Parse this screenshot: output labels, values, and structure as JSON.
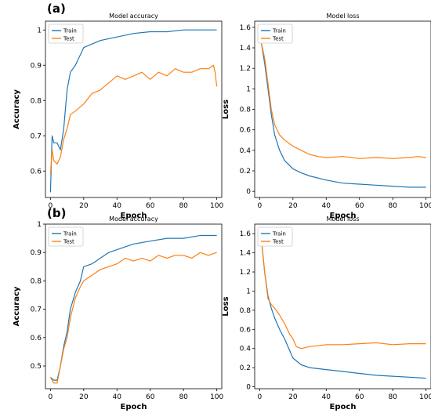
{
  "panel_labels": [
    "(a)",
    "(b)"
  ],
  "colors": {
    "train": "#1f77b4",
    "test": "#ff7f0e"
  },
  "chart_data": [
    {
      "panel": "(a)",
      "type": "line",
      "title": "Model accuracy",
      "xlabel": "Epoch",
      "ylabel": "Accuracy",
      "xlim": [
        -3,
        103
      ],
      "ylim": [
        0.525,
        1.025
      ],
      "xticks": [
        0,
        20,
        40,
        60,
        80,
        100
      ],
      "yticks": [
        0.6,
        0.7,
        0.8,
        0.9,
        1.0
      ],
      "legend": "top-left",
      "series": [
        {
          "name": "Train",
          "x": [
            0,
            1,
            2,
            4,
            6,
            8,
            10,
            12,
            15,
            18,
            20,
            25,
            30,
            40,
            50,
            60,
            70,
            80,
            90,
            100
          ],
          "y": [
            0.54,
            0.7,
            0.68,
            0.68,
            0.66,
            0.72,
            0.83,
            0.88,
            0.9,
            0.93,
            0.95,
            0.96,
            0.97,
            0.98,
            0.99,
            0.995,
            0.995,
            1.0,
            1.0,
            1.0
          ]
        },
        {
          "name": "Test",
          "x": [
            0,
            1,
            2,
            4,
            6,
            8,
            10,
            12,
            15,
            20,
            25,
            30,
            35,
            40,
            45,
            50,
            55,
            60,
            65,
            70,
            75,
            80,
            85,
            90,
            95,
            98,
            99,
            100
          ],
          "y": [
            0.59,
            0.66,
            0.63,
            0.62,
            0.64,
            0.69,
            0.72,
            0.76,
            0.77,
            0.79,
            0.82,
            0.83,
            0.85,
            0.87,
            0.86,
            0.87,
            0.88,
            0.86,
            0.88,
            0.87,
            0.89,
            0.88,
            0.88,
            0.89,
            0.89,
            0.9,
            0.88,
            0.84
          ]
        }
      ]
    },
    {
      "panel": "(a)",
      "type": "line",
      "title": "Model loss",
      "xlabel": "Epoch",
      "ylabel": "Loss",
      "xlim": [
        -3,
        103
      ],
      "ylim": [
        -0.06,
        1.66
      ],
      "xticks": [
        0,
        20,
        40,
        60,
        80,
        100
      ],
      "yticks": [
        0.0,
        0.2,
        0.4,
        0.6,
        0.8,
        1.0,
        1.2,
        1.4,
        1.6
      ],
      "legend": "top-left",
      "series": [
        {
          "name": "Train",
          "x": [
            1,
            3,
            5,
            7,
            9,
            12,
            15,
            20,
            25,
            30,
            40,
            50,
            60,
            70,
            80,
            90,
            100
          ],
          "y": [
            1.45,
            1.25,
            1.0,
            0.75,
            0.55,
            0.4,
            0.3,
            0.22,
            0.18,
            0.15,
            0.11,
            0.08,
            0.07,
            0.06,
            0.05,
            0.04,
            0.04
          ]
        },
        {
          "name": "Test",
          "x": [
            1,
            3,
            5,
            7,
            9,
            12,
            15,
            20,
            25,
            30,
            35,
            40,
            50,
            60,
            70,
            80,
            90,
            95,
            100
          ],
          "y": [
            1.45,
            1.3,
            1.05,
            0.8,
            0.65,
            0.55,
            0.5,
            0.44,
            0.4,
            0.36,
            0.34,
            0.33,
            0.34,
            0.32,
            0.33,
            0.32,
            0.33,
            0.34,
            0.33
          ]
        }
      ]
    },
    {
      "panel": "(b)",
      "type": "line",
      "title": "Model accuracy",
      "xlabel": "Epoch",
      "ylabel": "Accuracy",
      "xlim": [
        -3,
        103
      ],
      "ylim": [
        0.42,
        1.0
      ],
      "xticks": [
        0,
        20,
        40,
        60,
        80,
        100
      ],
      "yticks": [
        0.5,
        0.6,
        0.7,
        0.8,
        0.9,
        1.0
      ],
      "legend": "top-left",
      "series": [
        {
          "name": "Train",
          "x": [
            0,
            2,
            4,
            6,
            8,
            10,
            12,
            15,
            18,
            20,
            25,
            30,
            35,
            40,
            50,
            60,
            70,
            80,
            90,
            95,
            100
          ],
          "y": [
            0.46,
            0.45,
            0.45,
            0.5,
            0.57,
            0.62,
            0.7,
            0.76,
            0.8,
            0.85,
            0.86,
            0.88,
            0.9,
            0.91,
            0.93,
            0.94,
            0.95,
            0.95,
            0.96,
            0.96,
            0.96
          ]
        },
        {
          "name": "Test",
          "x": [
            0,
            2,
            4,
            6,
            8,
            10,
            12,
            15,
            18,
            20,
            25,
            30,
            35,
            40,
            45,
            50,
            55,
            60,
            65,
            70,
            75,
            80,
            85,
            90,
            95,
            100
          ],
          "y": [
            0.46,
            0.44,
            0.44,
            0.5,
            0.56,
            0.6,
            0.67,
            0.74,
            0.78,
            0.8,
            0.82,
            0.84,
            0.85,
            0.86,
            0.88,
            0.87,
            0.88,
            0.87,
            0.89,
            0.88,
            0.89,
            0.89,
            0.88,
            0.9,
            0.89,
            0.9
          ]
        }
      ]
    },
    {
      "panel": "(b)",
      "type": "line",
      "title": "Model loss",
      "xlabel": "Epoch",
      "ylabel": "Loss",
      "xlim": [
        -3,
        103
      ],
      "ylim": [
        -0.02,
        1.7
      ],
      "xticks": [
        0,
        20,
        40,
        60,
        80,
        100
      ],
      "yticks": [
        0.0,
        0.2,
        0.4,
        0.6,
        0.8,
        1.0,
        1.2,
        1.4,
        1.6
      ],
      "legend": "top-left",
      "series": [
        {
          "name": "Train",
          "x": [
            1,
            3,
            5,
            7,
            9,
            12,
            15,
            18,
            20,
            25,
            30,
            40,
            50,
            60,
            70,
            80,
            90,
            100
          ],
          "y": [
            1.55,
            1.2,
            0.95,
            0.82,
            0.72,
            0.6,
            0.5,
            0.38,
            0.3,
            0.23,
            0.2,
            0.18,
            0.16,
            0.14,
            0.12,
            0.11,
            0.1,
            0.09
          ]
        },
        {
          "name": "Test",
          "x": [
            1,
            3,
            5,
            7,
            9,
            12,
            15,
            18,
            20,
            22,
            25,
            30,
            40,
            50,
            60,
            70,
            80,
            90,
            100
          ],
          "y": [
            1.55,
            1.2,
            0.92,
            0.86,
            0.82,
            0.75,
            0.66,
            0.55,
            0.5,
            0.42,
            0.4,
            0.42,
            0.44,
            0.44,
            0.45,
            0.46,
            0.44,
            0.45,
            0.45
          ]
        }
      ]
    }
  ]
}
